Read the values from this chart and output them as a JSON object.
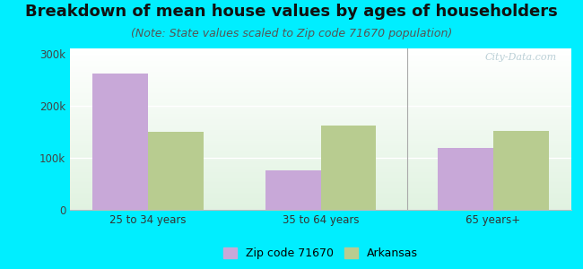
{
  "title": "Breakdown of mean house values by ages of householders",
  "subtitle": "(Note: State values scaled to Zip code 71670 population)",
  "categories": [
    "25 to 34 years",
    "35 to 64 years",
    "65 years+"
  ],
  "zip_values": [
    262000,
    75000,
    118000
  ],
  "state_values": [
    150000,
    162000,
    152000
  ],
  "zip_color": "#c8a8d8",
  "state_color": "#b8cc90",
  "background_outer": "#00eeff",
  "ylim": [
    0,
    310000
  ],
  "yticks": [
    0,
    100000,
    200000,
    300000
  ],
  "ytick_labels": [
    "0",
    "100k",
    "200k",
    "300k"
  ],
  "legend_zip_label": "Zip code 71670",
  "legend_state_label": "Arkansas",
  "bar_width": 0.32,
  "title_fontsize": 13,
  "subtitle_fontsize": 9,
  "watermark": "City-Data.com"
}
